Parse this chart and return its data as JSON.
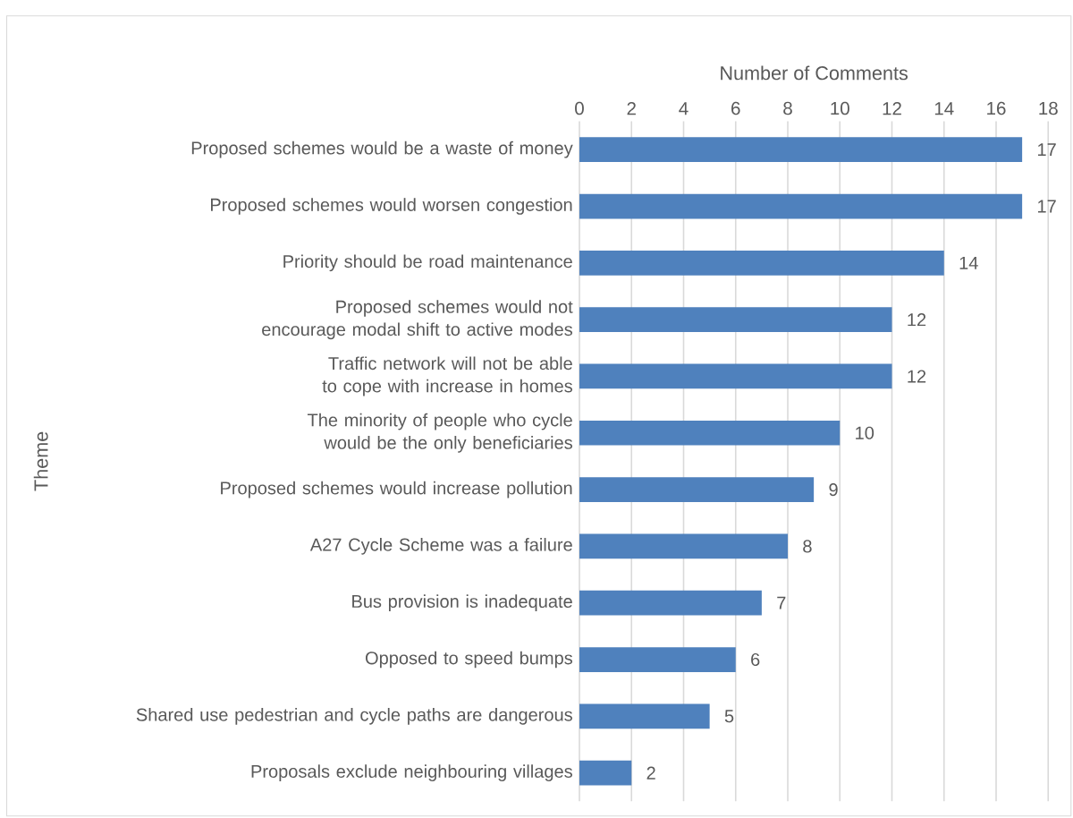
{
  "chart_data": {
    "type": "bar",
    "orientation": "horizontal",
    "xlabel": "Number of Comments",
    "ylabel": "Theme",
    "categories": [
      "Proposed schemes would be a waste of money",
      "Proposed schemes would worsen congestion",
      "Priority should be road maintenance",
      "Proposed schemes would not encourage modal shift to active modes",
      "Traffic network will not be able to cope with increase in homes",
      "The minority of people who cycle would be the only beneficiaries",
      "Proposed schemes would increase pollution",
      "A27 Cycle Scheme was a failure",
      "Bus provision is inadequate",
      "Opposed to speed bumps",
      "Shared use pedestrian and cycle paths are dangerous",
      "Proposals exclude neighbouring villages"
    ],
    "values": [
      17,
      17,
      14,
      12,
      12,
      10,
      9,
      8,
      7,
      6,
      5,
      2
    ],
    "color": "#4f81bd",
    "xlim": [
      0,
      18
    ],
    "xticks": [
      0,
      2,
      4,
      6,
      8,
      10,
      12,
      14,
      16,
      18
    ],
    "grid": "x",
    "data_labels": true
  }
}
